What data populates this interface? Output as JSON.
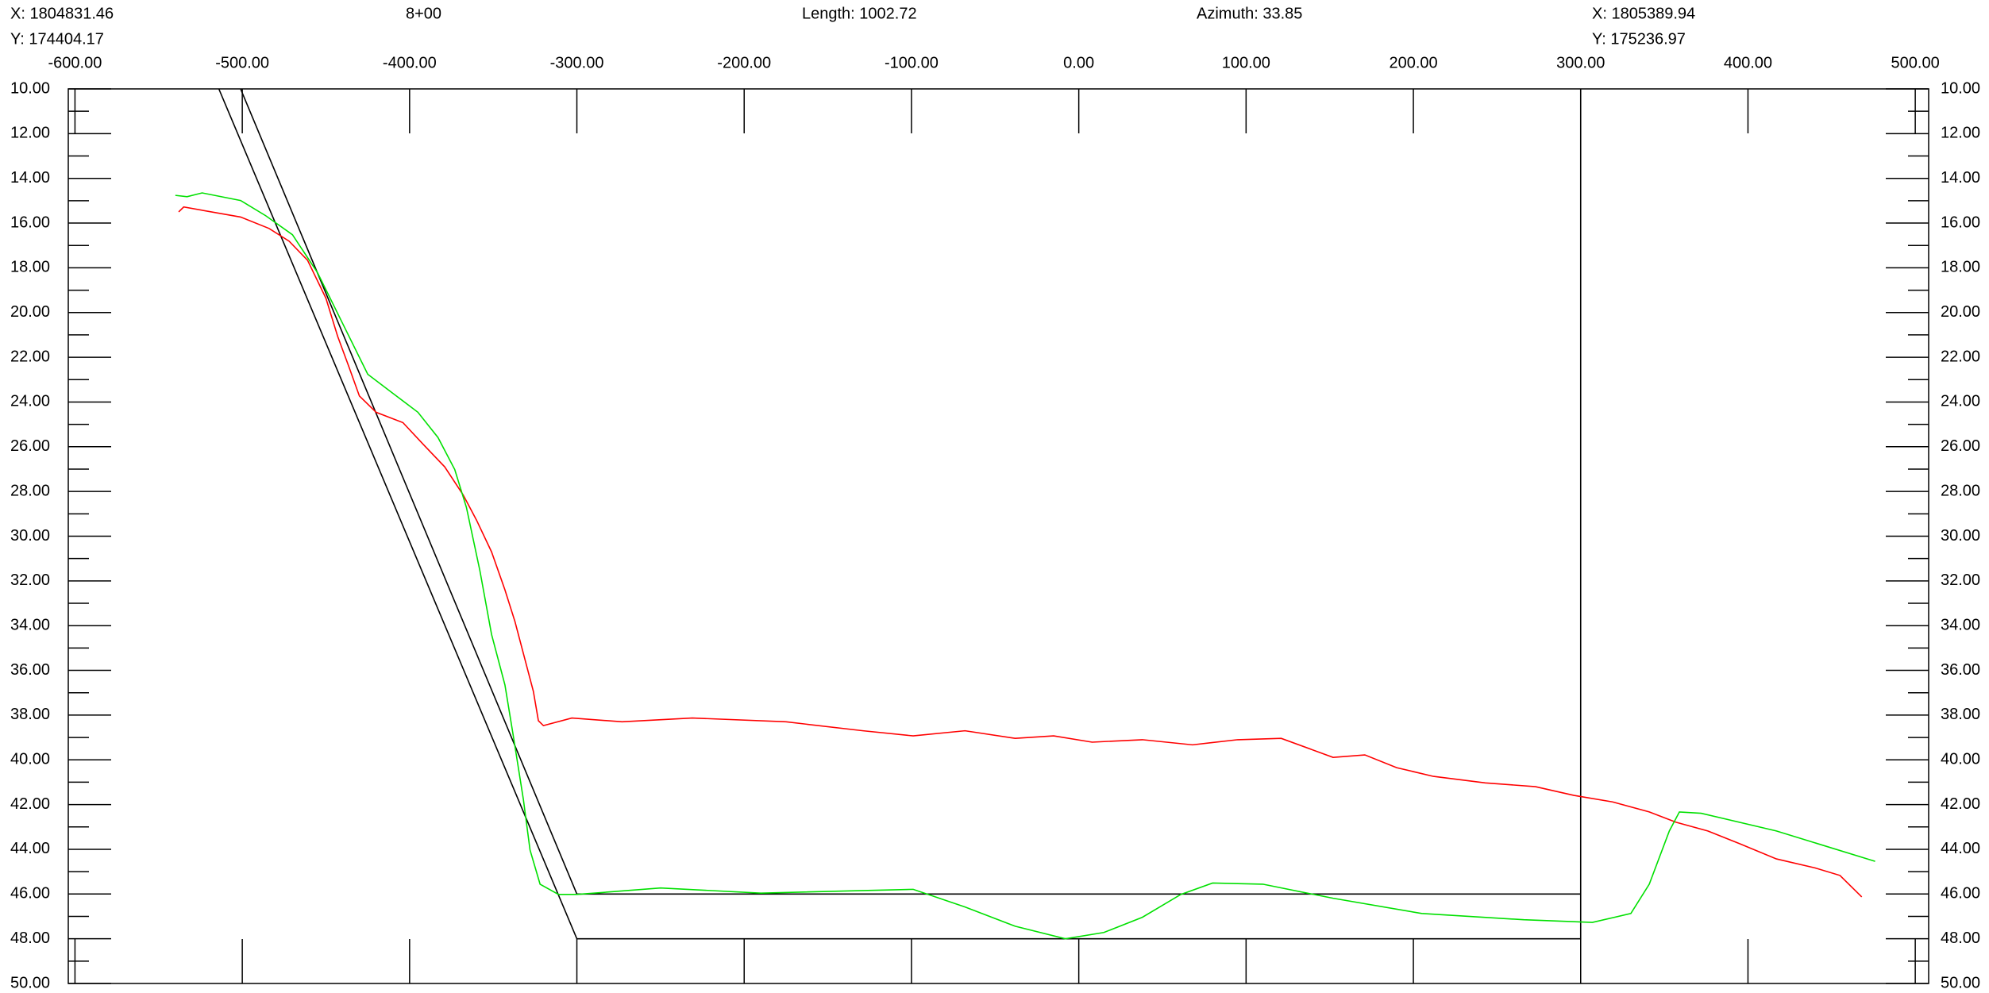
{
  "header": {
    "start_x": "X: 1804831.46",
    "start_y": "Y: 174404.17",
    "station": "8+00",
    "length": "Length: 1002.72",
    "azimuth": "Azimuth: 33.85",
    "end_x": "X: 1805389.94",
    "end_y": "Y: 175236.97"
  },
  "chart_data": {
    "type": "line",
    "xlim": [
      -604,
      508
    ],
    "ylim": [
      10,
      50
    ],
    "y_reversed": true,
    "xticks": [
      {
        "value": -600,
        "label": "-600.00"
      },
      {
        "value": -500,
        "label": "-500.00"
      },
      {
        "value": -400,
        "label": "-400.00"
      },
      {
        "value": -300,
        "label": "-300.00"
      },
      {
        "value": -200,
        "label": "-200.00"
      },
      {
        "value": -100,
        "label": "-100.00"
      },
      {
        "value": 0,
        "label": "0.00"
      },
      {
        "value": 100,
        "label": "100.00"
      },
      {
        "value": 200,
        "label": "200.00"
      },
      {
        "value": 300,
        "label": "300.00"
      },
      {
        "value": 400,
        "label": "400.00"
      },
      {
        "value": 500,
        "label": "500.00"
      }
    ],
    "yticks": [
      {
        "value": 10,
        "label": "10.00"
      },
      {
        "value": 12,
        "label": "12.00"
      },
      {
        "value": 14,
        "label": "14.00"
      },
      {
        "value": 16,
        "label": "16.00"
      },
      {
        "value": 18,
        "label": "18.00"
      },
      {
        "value": 20,
        "label": "20.00"
      },
      {
        "value": 22,
        "label": "22.00"
      },
      {
        "value": 24,
        "label": "24.00"
      },
      {
        "value": 26,
        "label": "26.00"
      },
      {
        "value": 28,
        "label": "28.00"
      },
      {
        "value": 30,
        "label": "30.00"
      },
      {
        "value": 32,
        "label": "32.00"
      },
      {
        "value": 34,
        "label": "34.00"
      },
      {
        "value": 36,
        "label": "36.00"
      },
      {
        "value": 38,
        "label": "38.00"
      },
      {
        "value": 40,
        "label": "40.00"
      },
      {
        "value": 42,
        "label": "42.00"
      },
      {
        "value": 44,
        "label": "44.00"
      },
      {
        "value": 46,
        "label": "46.00"
      },
      {
        "value": 48,
        "label": "48.00"
      },
      {
        "value": 50,
        "label": "50.00"
      }
    ],
    "series": [
      {
        "color": "#000000",
        "x": [
          -514,
          -300,
          300,
          300
        ],
        "values": [
          10,
          48,
          48,
          10
        ]
      },
      {
        "color": "#000000",
        "x": [
          -501,
          -300,
          300
        ],
        "values": [
          10,
          46,
          46
        ]
      },
      {
        "color": "#ff0000",
        "x": [
          -538,
          -535,
          -501,
          -484,
          -472,
          -461,
          -450,
          -443,
          -436,
          -430,
          -420,
          -404,
          -392,
          -379,
          -368,
          -360,
          -351,
          -343,
          -337,
          -331,
          -326,
          -323,
          -320,
          -303,
          -273,
          -231,
          -175,
          -129,
          -99,
          -68,
          -38,
          -15,
          8,
          38,
          68,
          95,
          121,
          152,
          171,
          190,
          212,
          243,
          273,
          296,
          319,
          341,
          357,
          376,
          395,
          417,
          440,
          455,
          468
        ],
        "values": [
          15.5,
          15.28,
          15.73,
          16.24,
          16.81,
          17.66,
          19.36,
          21.06,
          22.48,
          23.73,
          24.46,
          24.92,
          25.88,
          26.9,
          28.15,
          29.28,
          30.7,
          32.4,
          33.82,
          35.52,
          36.94,
          38.25,
          38.47,
          38.13,
          38.3,
          38.13,
          38.3,
          38.7,
          38.93,
          38.7,
          39.04,
          38.93,
          39.21,
          39.1,
          39.33,
          39.1,
          39.04,
          39.89,
          39.78,
          40.35,
          40.74,
          41.03,
          41.2,
          41.59,
          41.88,
          42.33,
          42.79,
          43.18,
          43.75,
          44.43,
          44.83,
          45.17,
          46.13
        ]
      },
      {
        "color": "#00e000",
        "x": [
          -540,
          -533,
          -524,
          -501,
          -486,
          -470,
          -455,
          -440,
          -425,
          -410,
          -395,
          -383,
          -373,
          -366,
          -358,
          -351,
          -343,
          -338,
          -332,
          -328,
          -322,
          -311,
          -300,
          -250,
          -190,
          -99,
          -68,
          -38,
          -8,
          15,
          38,
          61,
          80,
          110,
          152,
          205,
          266,
          307,
          330,
          341,
          353,
          359,
          372,
          417,
          476
        ],
        "values": [
          14.76,
          14.82,
          14.65,
          14.99,
          15.67,
          16.52,
          18.22,
          20.49,
          22.76,
          23.61,
          24.46,
          25.59,
          27.02,
          28.72,
          31.53,
          34.39,
          36.65,
          38.93,
          41.76,
          44.03,
          45.56,
          46.02,
          46.02,
          45.73,
          45.96,
          45.79,
          46.58,
          47.44,
          48.0,
          47.72,
          47.04,
          46.02,
          45.51,
          45.56,
          46.19,
          46.87,
          47.15,
          47.27,
          46.87,
          45.56,
          43.18,
          42.33,
          42.39,
          43.18,
          44.54
        ]
      }
    ]
  }
}
